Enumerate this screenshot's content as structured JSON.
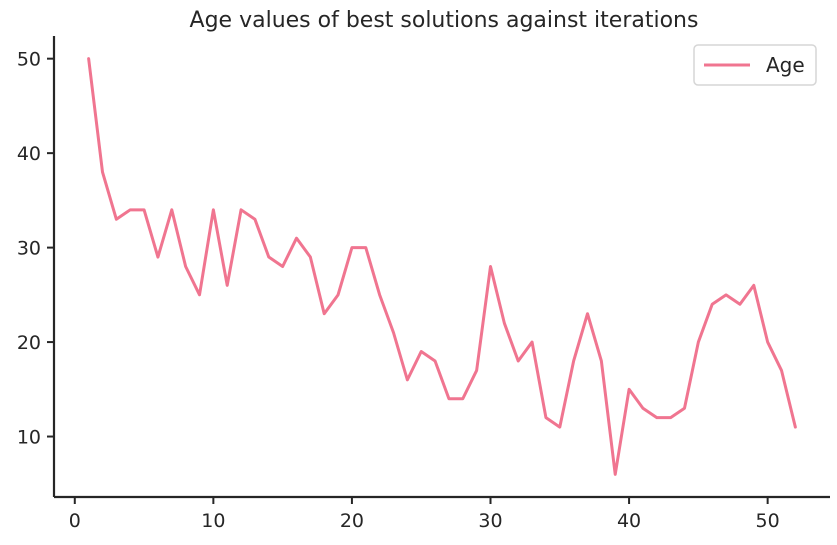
{
  "chart_data": {
    "type": "line",
    "title": "Age values of best solutions against iterations",
    "xlabel": "",
    "ylabel": "",
    "xlim": [
      -1.5,
      54.5
    ],
    "ylim": [
      3.6,
      52.4
    ],
    "xticks": [
      0,
      10,
      20,
      30,
      40,
      50
    ],
    "yticks": [
      10,
      20,
      30,
      40,
      50
    ],
    "grid": false,
    "legend_position": "top-right",
    "series": [
      {
        "name": "Age",
        "color": "#f07590",
        "x": [
          1,
          2,
          3,
          4,
          5,
          6,
          7,
          8,
          9,
          10,
          11,
          12,
          13,
          14,
          15,
          16,
          17,
          18,
          19,
          20,
          21,
          22,
          23,
          24,
          25,
          26,
          27,
          28,
          29,
          30,
          31,
          32,
          33,
          34,
          35,
          36,
          37,
          38,
          39,
          40,
          41,
          42,
          43,
          44,
          45,
          46,
          47,
          48,
          49,
          50,
          51,
          52
        ],
        "values": [
          50,
          38,
          33,
          34,
          34,
          29,
          34,
          28,
          25,
          34,
          26,
          34,
          33,
          29,
          28,
          31,
          29,
          23,
          25,
          30,
          30,
          25,
          21,
          16,
          19,
          18,
          14,
          14,
          17,
          28,
          22,
          18,
          20,
          12,
          11,
          18,
          23,
          18,
          6,
          15,
          13,
          12,
          12,
          13,
          20,
          24,
          25,
          24,
          26,
          20,
          17,
          11
        ]
      }
    ]
  }
}
